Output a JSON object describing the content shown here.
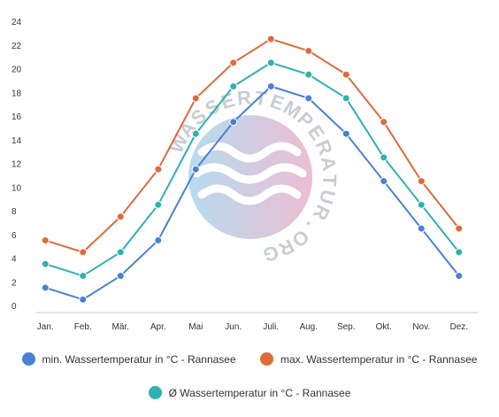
{
  "chart_data": {
    "type": "line",
    "categories": [
      "Jan.",
      "Feb.",
      "Mär.",
      "Apr.",
      "Mai",
      "Jun.",
      "Juli.",
      "Aug.",
      "Sep.",
      "Okt.",
      "Nov.",
      "Dez."
    ],
    "ylim": [
      0,
      24
    ],
    "yticks": [
      0,
      2,
      4,
      6,
      8,
      10,
      12,
      14,
      16,
      18,
      20,
      22,
      24
    ],
    "grid": false,
    "legend_position": "bottom",
    "series": [
      {
        "name": "min. Wassertemperatur in °C - Rannasee",
        "color": "#4a7fd6",
        "values": [
          1.5,
          0.5,
          2.5,
          5.5,
          11.5,
          15.5,
          18.5,
          17.5,
          14.5,
          10.5,
          6.5,
          2.5
        ]
      },
      {
        "name": "max. Wassertemperatur in °C - Rannasee",
        "color": "#e06a3a",
        "values": [
          5.5,
          4.5,
          7.5,
          11.5,
          17.5,
          20.5,
          22.5,
          21.5,
          19.5,
          15.5,
          10.5,
          6.5
        ]
      },
      {
        "name": "Ø Wassertemperatur in °C - Rannasee",
        "color": "#2fb0b0",
        "values": [
          3.5,
          2.5,
          4.5,
          8.5,
          14.5,
          18.5,
          20.5,
          19.5,
          17.5,
          12.5,
          8.5,
          4.5
        ]
      }
    ],
    "watermark": "WASSERTEMPERATUR.ORG"
  }
}
